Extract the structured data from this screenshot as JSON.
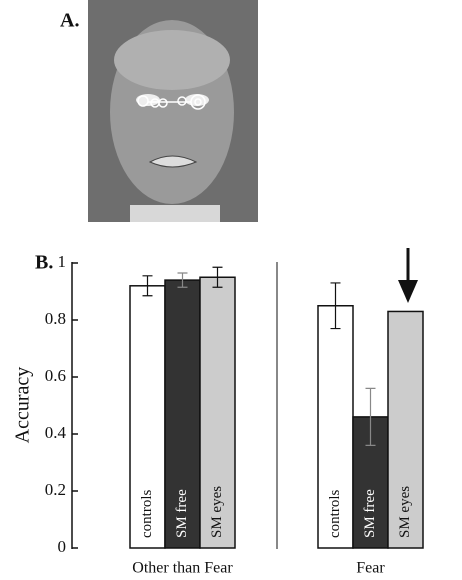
{
  "figure": {
    "panel_a_label": "A.",
    "panel_b_label": "B."
  },
  "chart_data": {
    "type": "bar",
    "y_label": "Accuracy",
    "categories": [
      "Other than Fear",
      "Fear"
    ],
    "series": [
      {
        "name": "controls",
        "color": "#ffffff",
        "values": [
          0.92,
          0.85
        ],
        "errors": [
          0.035,
          0.08
        ]
      },
      {
        "name": "SM free",
        "color": "#333333",
        "values": [
          0.94,
          0.46
        ],
        "errors": [
          0.025,
          0.1
        ]
      },
      {
        "name": "SM eyes",
        "color": "#cccccc",
        "values": [
          0.95,
          0.83
        ],
        "errors": [
          0.035,
          null
        ]
      }
    ],
    "ylim": [
      0,
      1
    ],
    "yticks": [
      0,
      0.2,
      0.4,
      0.6,
      0.8,
      1
    ]
  }
}
